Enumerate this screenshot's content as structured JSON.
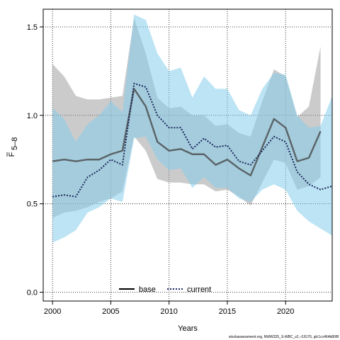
{
  "chart_data": {
    "type": "line",
    "xlabel": "Years",
    "ylabel": "F",
    "ylabel_sub": "5–8",
    "xlim": [
      1999.2,
      2024
    ],
    "ylim": [
      -0.05,
      1.6
    ],
    "xticks": [
      2000,
      2005,
      2010,
      2015,
      2020
    ],
    "yticks": [
      0.0,
      0.5,
      1.0,
      1.5
    ],
    "ytick_labels": [
      "0.0",
      "0.5",
      "1.0",
      "1.5"
    ],
    "grid": true,
    "legend_placement": "bottom-center",
    "series": [
      {
        "name": "base",
        "color": "#404040",
        "band_color": "#a0a0a0",
        "line_style": "solid",
        "x": [
          2000,
          2001,
          2002,
          2003,
          2004,
          2005,
          2006,
          2007,
          2008,
          2009,
          2010,
          2011,
          2012,
          2013,
          2014,
          2015,
          2016,
          2017,
          2018,
          2019,
          2020,
          2021,
          2022,
          2023
        ],
        "values": [
          0.74,
          0.75,
          0.74,
          0.75,
          0.75,
          0.78,
          0.8,
          1.15,
          1.05,
          0.85,
          0.8,
          0.81,
          0.78,
          0.78,
          0.72,
          0.75,
          0.7,
          0.66,
          0.82,
          0.98,
          0.93,
          0.74,
          0.76,
          0.91
        ],
        "upper": [
          1.29,
          1.22,
          1.11,
          1.09,
          1.09,
          1.1,
          1.11,
          1.55,
          1.35,
          1.1,
          1.04,
          1.05,
          1.0,
          1.0,
          0.94,
          0.95,
          0.9,
          0.88,
          1.08,
          1.26,
          1.22,
          0.99,
          1.05,
          1.39
        ],
        "lower": [
          0.42,
          0.45,
          0.46,
          0.48,
          0.51,
          0.53,
          0.57,
          0.88,
          0.8,
          0.64,
          0.62,
          0.62,
          0.61,
          0.61,
          0.57,
          0.58,
          0.54,
          0.49,
          0.62,
          0.75,
          0.73,
          0.58,
          0.6,
          0.65
        ]
      },
      {
        "name": "current",
        "color": "#1b2a5e",
        "band_color": "#87ceeb",
        "line_style": "dotted",
        "x": [
          2000,
          2001,
          2002,
          2003,
          2004,
          2005,
          2006,
          2007,
          2008,
          2009,
          2010,
          2011,
          2012,
          2013,
          2014,
          2015,
          2016,
          2017,
          2018,
          2019,
          2020,
          2021,
          2022,
          2023,
          2024
        ],
        "values": [
          0.54,
          0.55,
          0.54,
          0.65,
          0.69,
          0.75,
          0.72,
          1.18,
          1.16,
          1.0,
          0.93,
          0.93,
          0.81,
          0.87,
          0.82,
          0.83,
          0.74,
          0.72,
          0.8,
          0.88,
          0.85,
          0.68,
          0.61,
          0.58,
          0.6
        ],
        "upper": [
          1.04,
          0.98,
          0.85,
          0.95,
          1.0,
          1.08,
          1.02,
          1.57,
          1.54,
          1.35,
          1.25,
          1.27,
          1.1,
          1.22,
          1.15,
          1.15,
          1.03,
          1.0,
          1.15,
          1.24,
          1.23,
          1.0,
          0.93,
          0.94,
          1.11
        ],
        "lower": [
          0.28,
          0.31,
          0.35,
          0.45,
          0.48,
          0.53,
          0.51,
          0.87,
          0.88,
          0.75,
          0.69,
          0.7,
          0.59,
          0.65,
          0.59,
          0.59,
          0.53,
          0.51,
          0.58,
          0.61,
          0.58,
          0.46,
          0.4,
          0.36,
          0.32
        ]
      }
    ]
  },
  "legend": {
    "base": "base",
    "current": "current"
  },
  "footer": "stockassessment.org, NWW325_S-WBC_v2, r19176, git:1cc464b808f"
}
